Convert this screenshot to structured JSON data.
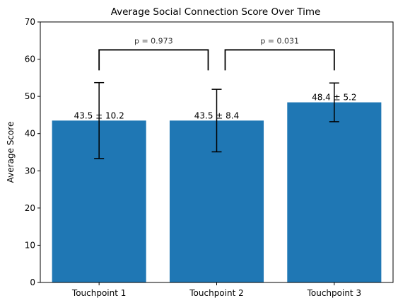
{
  "chart_data": {
    "type": "bar",
    "title": "Average Social Connection Score Over Time",
    "xlabel": "",
    "ylabel": "Average Score",
    "categories": [
      "Touchpoint 1",
      "Touchpoint 2",
      "Touchpoint 3"
    ],
    "values": [
      43.5,
      43.5,
      48.4
    ],
    "errors": [
      10.2,
      8.4,
      5.2
    ],
    "data_labels": [
      "43.5 ± 10.2",
      "43.5 ± 8.4",
      "48.4 ± 5.2"
    ],
    "ylim": [
      0,
      70
    ],
    "yticks": [
      0,
      10,
      20,
      30,
      40,
      50,
      60,
      70
    ],
    "bar_color": "#1f77b4",
    "grid": false,
    "annotations": [
      {
        "from": 0,
        "to": 1,
        "text": "p = 0.973",
        "bracket_y": 62.5,
        "bracket_drop_y": 57
      },
      {
        "from": 1,
        "to": 2,
        "text": "p = 0.031",
        "bracket_y": 62.5,
        "bracket_drop_y": 57
      }
    ]
  }
}
